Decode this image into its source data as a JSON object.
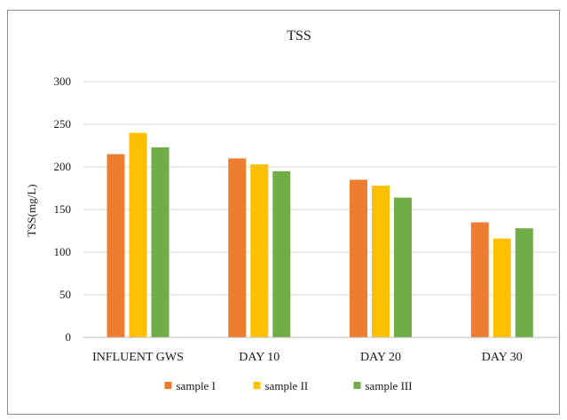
{
  "chart_data": {
    "type": "bar",
    "title": "TSS",
    "xlabel": "",
    "ylabel": "TSS(mg/L)",
    "ylim": [
      0,
      300
    ],
    "yticks": [
      0,
      50,
      100,
      150,
      200,
      250,
      300
    ],
    "categories": [
      "INFLUENT GWS",
      "DAY 10",
      "DAY 20",
      "DAY 30"
    ],
    "series": [
      {
        "name": "sample I",
        "color": "#ED7D31",
        "values": [
          215,
          210,
          185,
          135
        ]
      },
      {
        "name": "sample II",
        "color": "#FFC000",
        "values": [
          240,
          203,
          178,
          116
        ]
      },
      {
        "name": "sample III",
        "color": "#70AD47",
        "values": [
          223,
          195,
          164,
          128
        ]
      }
    ],
    "grid": true,
    "legend": "bottom"
  }
}
